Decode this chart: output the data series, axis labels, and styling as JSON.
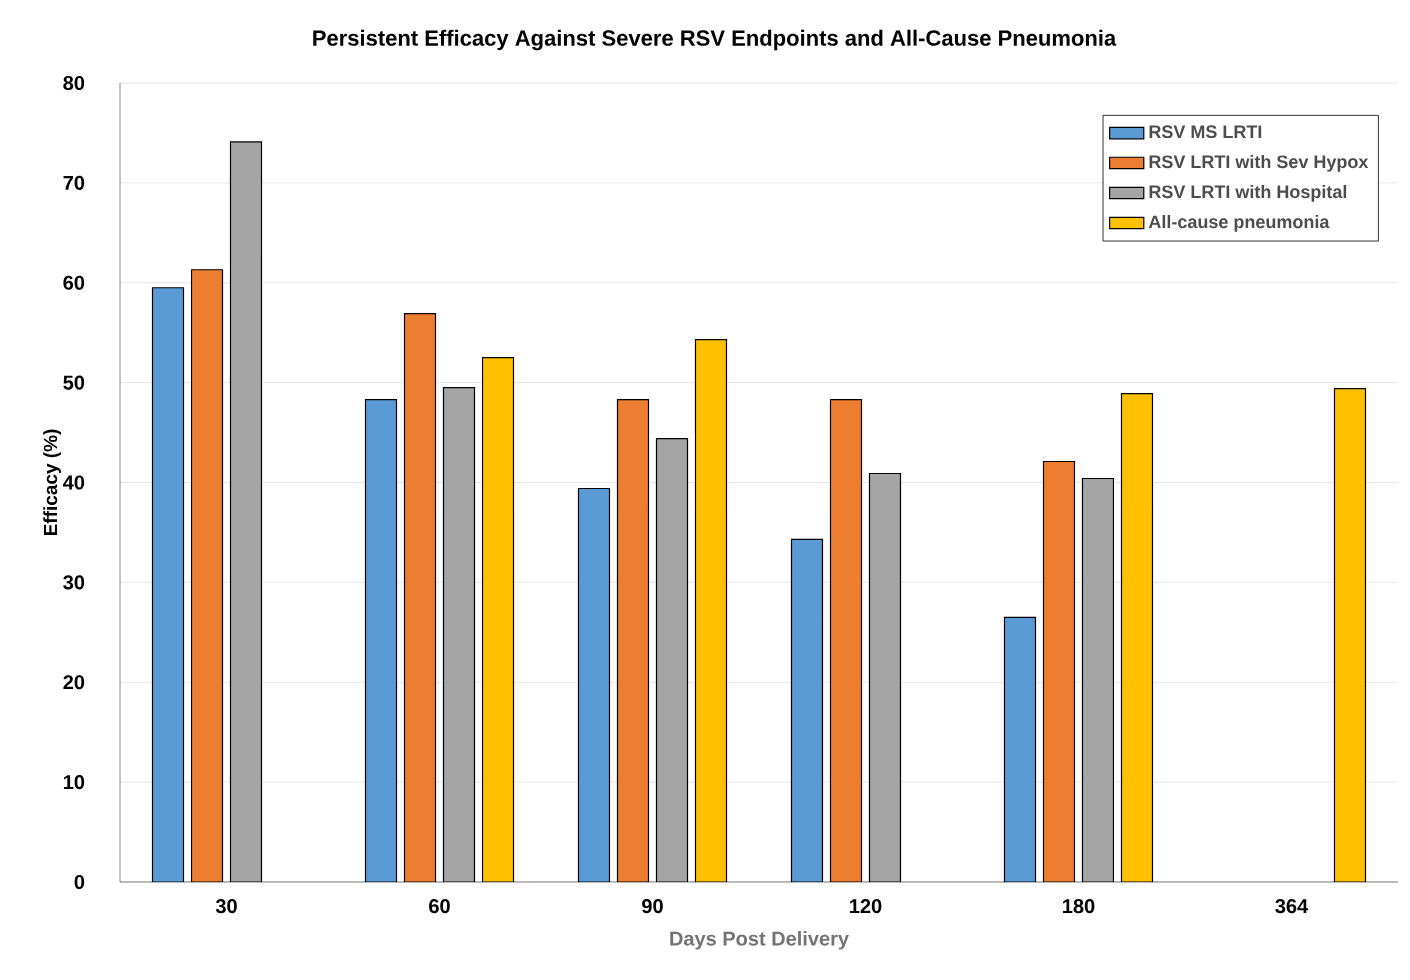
{
  "chart_data": {
    "type": "bar",
    "title": "Persistent Efficacy  Against Severe RSV Endpoints and All-Cause Pneumonia",
    "xlabel": "Days Post Delivery",
    "ylabel": "Efficacy (%)",
    "categories": [
      "30",
      "60",
      "90",
      "120",
      "180",
      "364"
    ],
    "series": [
      {
        "name": "RSV MS LRTI",
        "color": "#5b9bd5",
        "values": [
          59.5,
          48.3,
          39.4,
          34.3,
          26.5,
          null
        ]
      },
      {
        "name": "RSV LRTI with Sev Hypox",
        "color": "#ed7d31",
        "values": [
          61.3,
          56.9,
          48.3,
          48.3,
          42.1,
          null
        ]
      },
      {
        "name": "RSV LRTI with Hospital",
        "color": "#a5a5a5",
        "values": [
          74.1,
          49.5,
          44.4,
          40.9,
          40.4,
          null
        ]
      },
      {
        "name": "All-cause pneumonia",
        "color": "#ffc000",
        "values": [
          null,
          52.5,
          54.3,
          null,
          48.9,
          49.4
        ]
      }
    ],
    "ylim": [
      0,
      80
    ],
    "yticks": [
      0,
      10,
      20,
      30,
      40,
      50,
      60,
      70,
      80
    ],
    "grid": "y",
    "legend": "top right"
  }
}
